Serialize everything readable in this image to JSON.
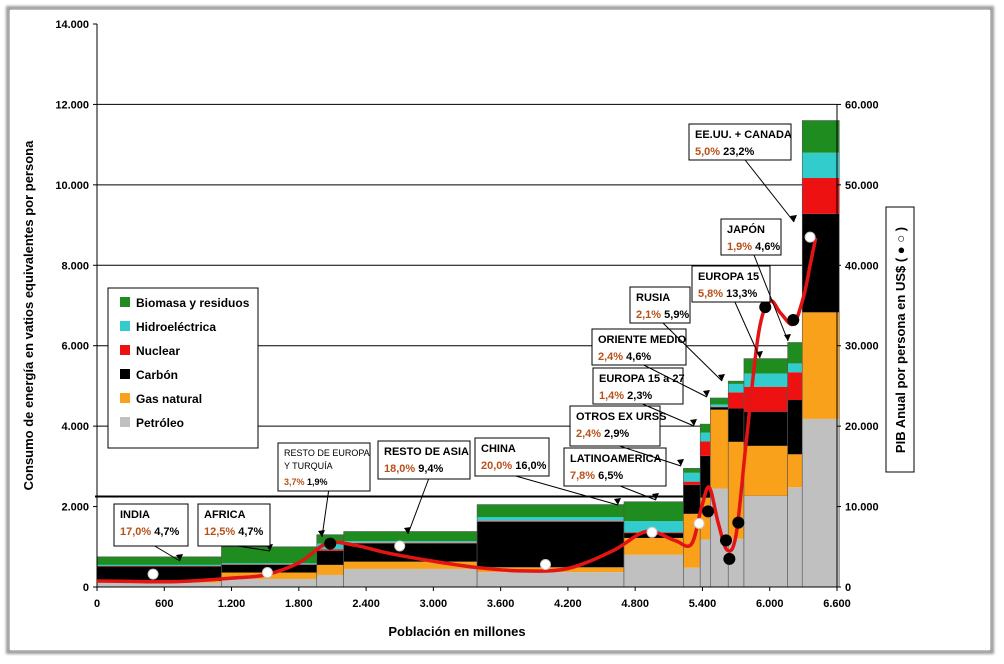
{
  "chart_data": {
    "type": "bar",
    "xlabel": "Población en millones",
    "ylabel": "Consumo de energía en vatios equivalentes por persona",
    "y2label": "PIB Anual por persona en US$ ( ● ○ )",
    "xlim": [
      0,
      6600
    ],
    "ylim": [
      0,
      14000
    ],
    "y2lim": [
      0,
      70000
    ],
    "x_ticks": [
      "0",
      "600",
      "1.200",
      "1.800",
      "2.400",
      "3.000",
      "3.600",
      "4.200",
      "4.800",
      "5.400",
      "6.000",
      "6.600"
    ],
    "y_ticks": [
      "0",
      "2.000",
      "4.000",
      "6.000",
      "8.000",
      "10.000",
      "12.000",
      "14.000"
    ],
    "y2_ticks": [
      "0",
      "10.000",
      "20.000",
      "30.000",
      "40.000",
      "50.000",
      "60.000"
    ],
    "legend": {
      "position": "left",
      "items": [
        {
          "name": "Biomasa y residuos",
          "color": "#1e8c1e"
        },
        {
          "name": "Hidroeléctrica",
          "color": "#33cccc"
        },
        {
          "name": "Nuclear",
          "color": "#ee1111"
        },
        {
          "name": "Carbón",
          "color": "#000000"
        },
        {
          "name": "Gas natural",
          "color": "#f9a11b"
        },
        {
          "name": "Petróleo",
          "color": "#c0c0c0"
        }
      ]
    },
    "reference_line_y": 2250,
    "regions": [
      {
        "name": "INDIA",
        "pop_share": "17,0%",
        "gdp_share": "4,7%",
        "x_start": 0,
        "x_end": 1110,
        "stack": {
          "Petróleo": 110,
          "Gas natural": 40,
          "Carbón": 360,
          "Nuclear": 10,
          "Hidroeléctrica": 30,
          "Biomasa y residuos": 200
        }
      },
      {
        "name": "AFRICA",
        "pop_share": "12,5%",
        "gdp_share": "4,7%",
        "x_start": 1110,
        "x_end": 1960,
        "stack": {
          "Petróleo": 200,
          "Gas natural": 160,
          "Carbón": 190,
          "Nuclear": 10,
          "Hidroeléctrica": 30,
          "Biomasa y residuos": 410
        }
      },
      {
        "name": "RESTO DE EUROPA Y TURQUÍA",
        "pop_share": "3,7%",
        "gdp_share": "1,9%",
        "x_start": 1960,
        "x_end": 2200,
        "stack": {
          "Petróleo": 300,
          "Gas natural": 250,
          "Carbón": 350,
          "Nuclear": 40,
          "Hidroeléctrica": 140,
          "Biomasa y residuos": 220
        }
      },
      {
        "name": "RESTO DE ASIA",
        "pop_share": "18,0%",
        "gdp_share": "9,4%",
        "x_start": 2200,
        "x_end": 3390,
        "stack": {
          "Petróleo": 450,
          "Gas natural": 180,
          "Carbón": 450,
          "Nuclear": 20,
          "Hidroeléctrica": 40,
          "Biomasa y residuos": 240
        }
      },
      {
        "name": "CHINA",
        "pop_share": "20,0%",
        "gdp_share": "16,0%",
        "x_start": 3390,
        "x_end": 4700,
        "stack": {
          "Petróleo": 370,
          "Gas natural": 120,
          "Carbón": 1130,
          "Nuclear": 20,
          "Hidroeléctrica": 100,
          "Biomasa y residuos": 310
        }
      },
      {
        "name": "LATINOAMERICA",
        "pop_share": "7,8%",
        "gdp_share": "6,5%",
        "x_start": 4700,
        "x_end": 5230,
        "stack": {
          "Petróleo": 800,
          "Gas natural": 420,
          "Carbón": 120,
          "Nuclear": 20,
          "Hidroeléctrica": 280,
          "Biomasa y residuos": 480
        }
      },
      {
        "name": "OTROS EX URSS",
        "pop_share": "2,4%",
        "gdp_share": "2,9%",
        "x_start": 5230,
        "x_end": 5380,
        "stack": {
          "Petróleo": 480,
          "Gas natural": 1340,
          "Carbón": 720,
          "Nuclear": 80,
          "Hidroeléctrica": 220,
          "Biomasa y residuos": 110
        }
      },
      {
        "name": "EUROPA 15 a 27",
        "pop_share": "1,4%",
        "gdp_share": "2,3%",
        "x_start": 5380,
        "x_end": 5470,
        "stack": {
          "Petróleo": 1180,
          "Gas natural": 1040,
          "Carbón": 1040,
          "Nuclear": 360,
          "Hidroeléctrica": 220,
          "Biomasa y residuos": 210
        }
      },
      {
        "name": "ORIENTE MEDIO",
        "pop_share": "2,4%",
        "gdp_share": "4,6%",
        "x_start": 5470,
        "x_end": 5630,
        "stack": {
          "Petróleo": 2450,
          "Gas natural": 1960,
          "Carbón": 60,
          "Nuclear": 10,
          "Hidroeléctrica": 60,
          "Biomasa y residuos": 160
        }
      },
      {
        "name": "RUSIA",
        "pop_share": "2,1%",
        "gdp_share": "5,9%",
        "x_start": 5630,
        "x_end": 5770,
        "stack": {
          "Petróleo": 1200,
          "Gas natural": 2410,
          "Carbón": 830,
          "Nuclear": 400,
          "Hidroeléctrica": 210,
          "Biomasa y residuos": 70
        }
      },
      {
        "name": "EUROPA 15",
        "pop_share": "5,8%",
        "gdp_share": "13,3%",
        "x_start": 5770,
        "x_end": 6160,
        "stack": {
          "Petróleo": 2270,
          "Gas natural": 1240,
          "Carbón": 850,
          "Nuclear": 620,
          "Hidroeléctrica": 330,
          "Biomasa y residuos": 370
        }
      },
      {
        "name": "JAPÓN",
        "pop_share": "1,9%",
        "gdp_share": "4,6%",
        "x_start": 6160,
        "x_end": 6290,
        "stack": {
          "Petróleo": 2480,
          "Gas natural": 820,
          "Carbón": 1350,
          "Nuclear": 690,
          "Hidroeléctrica": 220,
          "Biomasa y residuos": 520
        }
      },
      {
        "name": "EE.UU. + CANADA",
        "pop_share": "5,0%",
        "gdp_share": "23,2%",
        "x_start": 6290,
        "x_end": 6620,
        "stack": {
          "Petróleo": 4180,
          "Gas natural": 2650,
          "Carbón": 2450,
          "Nuclear": 890,
          "Hidroeléctrica": 630,
          "Biomasa y residuos": 800
        }
      }
    ],
    "gdp_points_white": [
      [
        500,
        1600
      ],
      [
        1520,
        1800
      ],
      [
        2700,
        5100
      ],
      [
        4000,
        2800
      ],
      [
        4950,
        6800
      ],
      [
        5370,
        7900
      ],
      [
        6360,
        43500
      ]
    ],
    "gdp_points_black": [
      [
        2080,
        5400
      ],
      [
        5450,
        9400
      ],
      [
        5610,
        5800
      ],
      [
        5960,
        34800
      ],
      [
        6210,
        33200
      ],
      [
        5720,
        8000
      ],
      [
        5640,
        3500
      ]
    ],
    "gdp_curve": [
      [
        0,
        750
      ],
      [
        300,
        700
      ],
      [
        600,
        650
      ],
      [
        900,
        800
      ],
      [
        1200,
        1100
      ],
      [
        1500,
        1500
      ],
      [
        1800,
        3000
      ],
      [
        2050,
        5400
      ],
      [
        2300,
        5200
      ],
      [
        2600,
        4200
      ],
      [
        3000,
        3200
      ],
      [
        3400,
        2400
      ],
      [
        3800,
        2000
      ],
      [
        4200,
        2300
      ],
      [
        4600,
        4500
      ],
      [
        4900,
        6900
      ],
      [
        5150,
        5800
      ],
      [
        5300,
        5300
      ],
      [
        5390,
        9800
      ],
      [
        5460,
        12400
      ],
      [
        5540,
        8000
      ],
      [
        5620,
        4600
      ],
      [
        5700,
        6500
      ],
      [
        5790,
        18000
      ],
      [
        5900,
        31500
      ],
      [
        6000,
        35500
      ],
      [
        6100,
        34000
      ],
      [
        6210,
        32700
      ],
      [
        6300,
        36000
      ],
      [
        6360,
        40000
      ],
      [
        6410,
        43400
      ]
    ]
  }
}
